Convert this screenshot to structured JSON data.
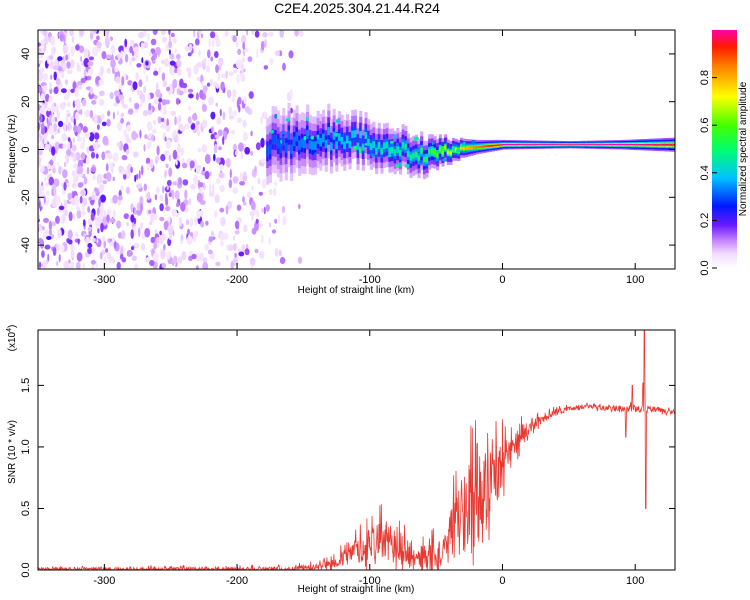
{
  "title": "C2E4.2025.304.21.44.R24",
  "chart_data": [
    {
      "type": "heatmap",
      "xlabel": "Height of straight line (km)",
      "ylabel": "Frequency (Hz)",
      "xlim": [
        -350,
        130
      ],
      "ylim": [
        -50,
        50
      ],
      "xticks": [
        -300,
        -200,
        -100,
        0,
        100
      ],
      "yticks": [
        -40,
        -20,
        0,
        20,
        40
      ],
      "colorbar": {
        "label": "Normalized spectral amplitude",
        "range": [
          0,
          1
        ],
        "ticks": [
          "0.0",
          "0.2",
          "0.4",
          "0.6",
          "0.8"
        ]
      },
      "signal_band": [
        {
          "x": -170,
          "center_hz": 3,
          "half_width_hz": 14,
          "peak": 0.25
        },
        {
          "x": -140,
          "center_hz": 5,
          "half_width_hz": 12,
          "peak": 0.3
        },
        {
          "x": -110,
          "center_hz": 4,
          "half_width_hz": 10,
          "peak": 0.35
        },
        {
          "x": -80,
          "center_hz": 0,
          "half_width_hz": 9,
          "peak": 0.4
        },
        {
          "x": -60,
          "center_hz": -2,
          "half_width_hz": 8,
          "peak": 0.45
        },
        {
          "x": -40,
          "center_hz": 0,
          "half_width_hz": 5,
          "peak": 0.65
        },
        {
          "x": -20,
          "center_hz": 1,
          "half_width_hz": 3,
          "peak": 0.8
        },
        {
          "x": 0,
          "center_hz": 2,
          "half_width_hz": 2,
          "peak": 0.95
        },
        {
          "x": 50,
          "center_hz": 2,
          "half_width_hz": 1.5,
          "peak": 1.0
        },
        {
          "x": 90,
          "center_hz": 2,
          "half_width_hz": 2,
          "peak": 0.95
        },
        {
          "x": 130,
          "center_hz": 2,
          "half_width_hz": 3,
          "peak": 0.9
        }
      ]
    },
    {
      "type": "line",
      "xlabel": "Height of straight line (km)",
      "ylabel": "SNR (10 * v/v)",
      "y_scale_note": "(x10",
      "y_scale_exp": "4",
      "xlim": [
        -350,
        130
      ],
      "ylim": [
        0,
        1.95
      ],
      "xticks": [
        -300,
        -200,
        -100,
        0,
        100
      ],
      "yticks": [
        "0.0",
        "0.5",
        "1.0",
        "1.5"
      ],
      "line_color": "#e83a33",
      "envelope": [
        {
          "x": -350,
          "base": 0.0,
          "amp": 0.03
        },
        {
          "x": -160,
          "base": 0.0,
          "amp": 0.04
        },
        {
          "x": -140,
          "base": 0.02,
          "amp": 0.05
        },
        {
          "x": -125,
          "base": 0.05,
          "amp": 0.1
        },
        {
          "x": -110,
          "base": 0.12,
          "amp": 0.2
        },
        {
          "x": -95,
          "base": 0.2,
          "amp": 0.3
        },
        {
          "x": -80,
          "base": 0.15,
          "amp": 0.3
        },
        {
          "x": -65,
          "base": 0.08,
          "amp": 0.15
        },
        {
          "x": -55,
          "base": 0.05,
          "amp": 0.3
        },
        {
          "x": -45,
          "base": 0.1,
          "amp": 0.2
        },
        {
          "x": -35,
          "base": 0.3,
          "amp": 0.6
        },
        {
          "x": -25,
          "base": 0.4,
          "amp": 0.8
        },
        {
          "x": -15,
          "base": 0.5,
          "amp": 0.8
        },
        {
          "x": -5,
          "base": 0.7,
          "amp": 0.5
        },
        {
          "x": 5,
          "base": 0.9,
          "amp": 0.3
        },
        {
          "x": 20,
          "base": 1.15,
          "amp": 0.12
        },
        {
          "x": 40,
          "base": 1.28,
          "amp": 0.05
        },
        {
          "x": 60,
          "base": 1.32,
          "amp": 0.04
        },
        {
          "x": 80,
          "base": 1.31,
          "amp": 0.04
        },
        {
          "x": 100,
          "base": 1.3,
          "amp": 0.06
        },
        {
          "x": 115,
          "base": 1.3,
          "amp": 0.05
        },
        {
          "x": 130,
          "base": 1.27,
          "amp": 0.03
        }
      ],
      "spikes": [
        {
          "x": 93,
          "y": 1.08
        },
        {
          "x": 98,
          "y": 1.5
        },
        {
          "x": 106,
          "y": 1.52
        },
        {
          "x": 107,
          "y": 1.95
        },
        {
          "x": 108,
          "y": 0.5
        }
      ]
    }
  ]
}
